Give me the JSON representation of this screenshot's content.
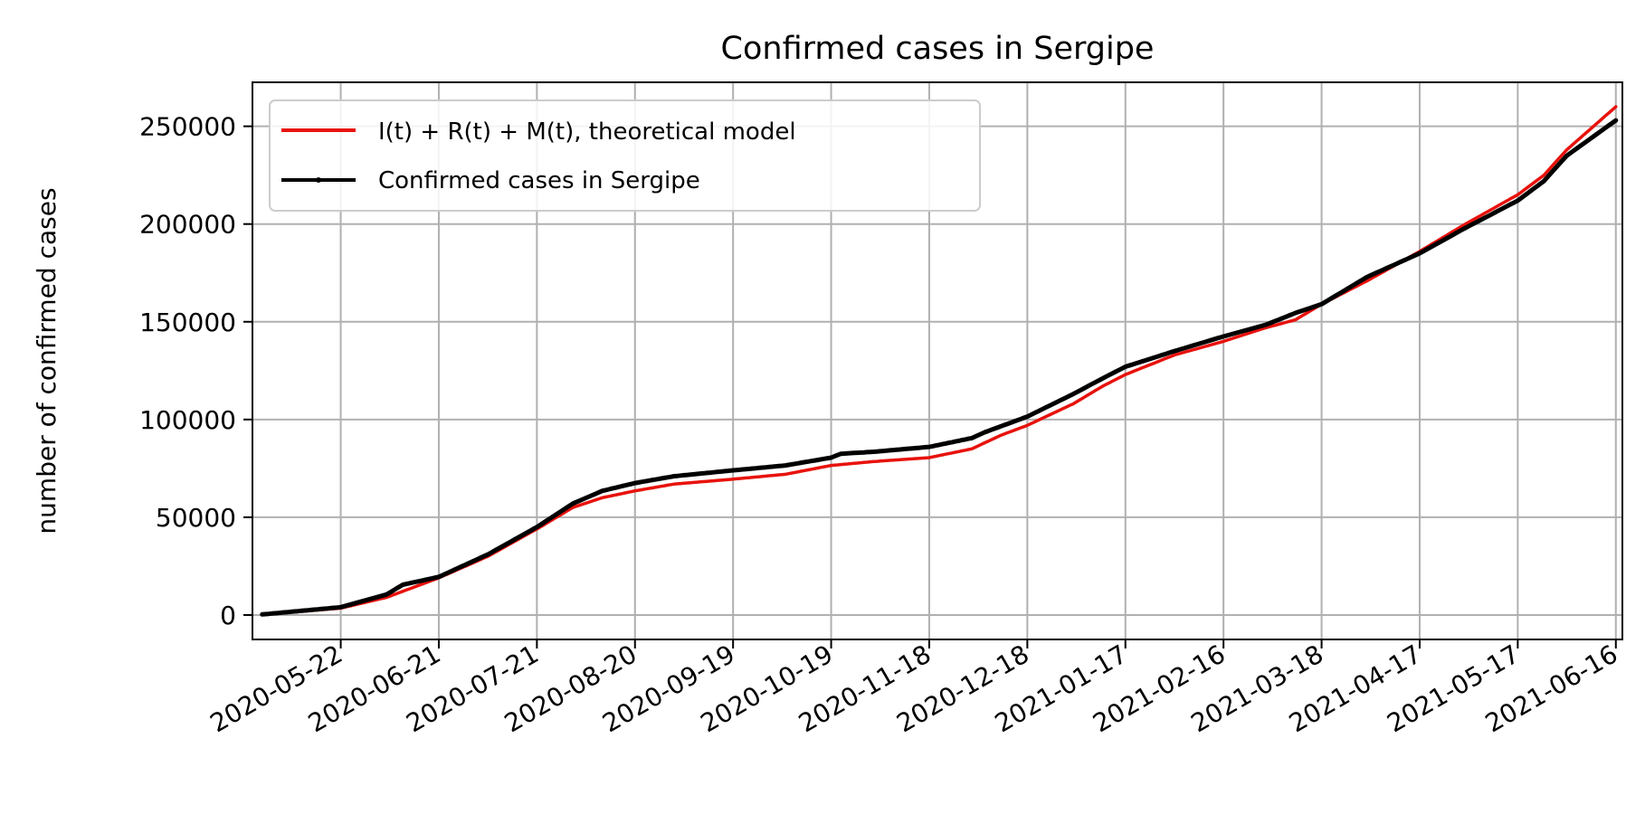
{
  "chart_data": {
    "type": "line",
    "title": "Confirmed cases in Sergipe",
    "xlabel": "",
    "ylabel": "number of confirmed cases",
    "x_start": "2020-04-28",
    "x_end": "2021-06-16",
    "xlim": [
      "2020-04-25",
      "2021-06-18"
    ],
    "ylim": [
      -12500,
      272500
    ],
    "x_ticks": [
      "2020-05-22",
      "2020-06-21",
      "2020-07-21",
      "2020-08-20",
      "2020-09-19",
      "2020-10-19",
      "2020-11-18",
      "2020-12-18",
      "2021-01-17",
      "2021-02-16",
      "2021-03-18",
      "2021-04-17",
      "2021-05-17",
      "2021-06-16"
    ],
    "y_ticks": [
      "0",
      "50000",
      "100000",
      "150000",
      "200000",
      "250000"
    ],
    "grid": true,
    "legend_position": "top-left",
    "series": [
      {
        "name": "I(t) + R(t) + M(t), theoretical model",
        "color": "#e8120c",
        "marker": false,
        "x": [
          "2020-04-28",
          "2020-05-22",
          "2020-06-05",
          "2020-06-21",
          "2020-07-06",
          "2020-07-21",
          "2020-08-01",
          "2020-08-10",
          "2020-08-20",
          "2020-09-01",
          "2020-09-19",
          "2020-10-05",
          "2020-10-19",
          "2020-11-01",
          "2020-11-18",
          "2020-12-01",
          "2020-12-10",
          "2020-12-18",
          "2021-01-01",
          "2021-01-10",
          "2021-01-17",
          "2021-02-01",
          "2021-02-16",
          "2021-03-01",
          "2021-03-10",
          "2021-03-18",
          "2021-04-01",
          "2021-04-17",
          "2021-05-01",
          "2021-05-17",
          "2021-05-25",
          "2021-06-01",
          "2021-06-16"
        ],
        "y": [
          200,
          3500,
          9000,
          19000,
          30000,
          44000,
          55000,
          60000,
          63500,
          67000,
          69500,
          72000,
          76500,
          78500,
          80500,
          85000,
          92000,
          97000,
          108000,
          117000,
          123000,
          133000,
          140000,
          147000,
          151000,
          159000,
          171000,
          186000,
          200000,
          215000,
          225000,
          238000,
          260000
        ]
      },
      {
        "name": "Confirmed cases in Sergipe",
        "color": "#000000",
        "marker": true,
        "x": [
          "2020-04-28",
          "2020-05-22",
          "2020-06-05",
          "2020-06-10",
          "2020-06-21",
          "2020-07-06",
          "2020-07-21",
          "2020-08-01",
          "2020-08-10",
          "2020-08-20",
          "2020-09-01",
          "2020-09-19",
          "2020-10-05",
          "2020-10-19",
          "2020-10-22",
          "2020-11-01",
          "2020-11-18",
          "2020-12-01",
          "2020-12-05",
          "2020-12-18",
          "2021-01-01",
          "2021-01-10",
          "2021-01-17",
          "2021-02-01",
          "2021-02-16",
          "2021-03-01",
          "2021-03-10",
          "2021-03-18",
          "2021-04-01",
          "2021-04-17",
          "2021-05-01",
          "2021-05-17",
          "2021-05-25",
          "2021-06-01",
          "2021-06-16"
        ],
        "y": [
          300,
          4000,
          10500,
          15500,
          19500,
          31000,
          45000,
          57000,
          63500,
          67500,
          71000,
          74000,
          76500,
          80500,
          82500,
          83500,
          86000,
          90500,
          93500,
          101500,
          113000,
          121000,
          127000,
          135000,
          142500,
          148500,
          154500,
          159000,
          173000,
          185000,
          198000,
          212000,
          222000,
          235000,
          253000
        ]
      }
    ]
  }
}
